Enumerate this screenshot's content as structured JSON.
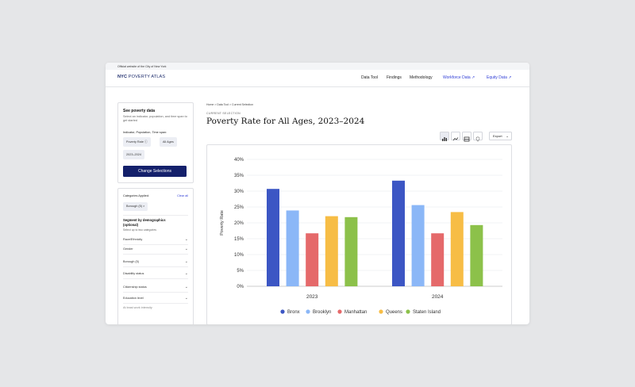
{
  "gov_banner": "Official website of the City of New York",
  "logo": {
    "bold": "NYC",
    "rest": "POVERTY ATLAS"
  },
  "nav": [
    {
      "label": "Data Tool"
    },
    {
      "label": "Findings"
    },
    {
      "label": "Methodology"
    },
    {
      "label": "Workforce Data ↗"
    },
    {
      "label": "Equity Data ↗"
    }
  ],
  "sidebar": {
    "poverty_data": {
      "title": "See poverty data",
      "description": "Select an indicator, population, and time span to get started",
      "selectors_label": "Indicator, Population, Time span:",
      "chips": [
        "Poverty Rate ⓘ",
        "All Ages",
        "2023–2024"
      ],
      "button": "Change Selections"
    },
    "categories": {
      "label": "Categories Applied:",
      "clear": "Clear all",
      "chip": "Borough (5) ×",
      "segment_title": "Segment by demographics",
      "segment_optional": "(optional)",
      "segment_hint": "Select up to two categories",
      "items": [
        "Race/Ethnicity",
        "Gender",
        "Borough (5)",
        "Disability status",
        "Citizenship status",
        "Education level",
        "At least work intensity"
      ]
    }
  },
  "breadcrumb": "Home > Data Tool > Current Selection",
  "eyebrow": "CURRENT SELECTION",
  "page_title": "Poverty Rate for All Ages, 2023–2024",
  "view_icons": [
    "bar-chart-icon",
    "line-chart-icon",
    "table-icon",
    "map-pin-icon"
  ],
  "export_label": "Export",
  "colors": {
    "Bronx": "#3c56c4",
    "Brooklyn": "#8bb7f7",
    "Manhattan": "#e5696a",
    "Queens": "#f7bd45",
    "Staten Island": "#8cc14a",
    "primary": "#14206b",
    "link": "#2f3dd6"
  },
  "chart_data": {
    "type": "bar",
    "categories": [
      "2023",
      "2024"
    ],
    "series": [
      {
        "name": "Bronx",
        "values": [
          30.7,
          33.3
        ]
      },
      {
        "name": "Brooklyn",
        "values": [
          23.9,
          25.6
        ]
      },
      {
        "name": "Manhattan",
        "values": [
          16.7,
          16.7
        ]
      },
      {
        "name": "Queens",
        "values": [
          22.1,
          23.4
        ]
      },
      {
        "name": "Staten Island",
        "values": [
          21.8,
          19.3
        ]
      }
    ],
    "ylabel": "Poverty Rate",
    "xlabel": "",
    "ylim": [
      0,
      40
    ],
    "yticks": [
      "0%",
      "5%",
      "10%",
      "15%",
      "20%",
      "25%",
      "30%",
      "35%",
      "40%"
    ],
    "grid": true,
    "legend": "bottom"
  }
}
